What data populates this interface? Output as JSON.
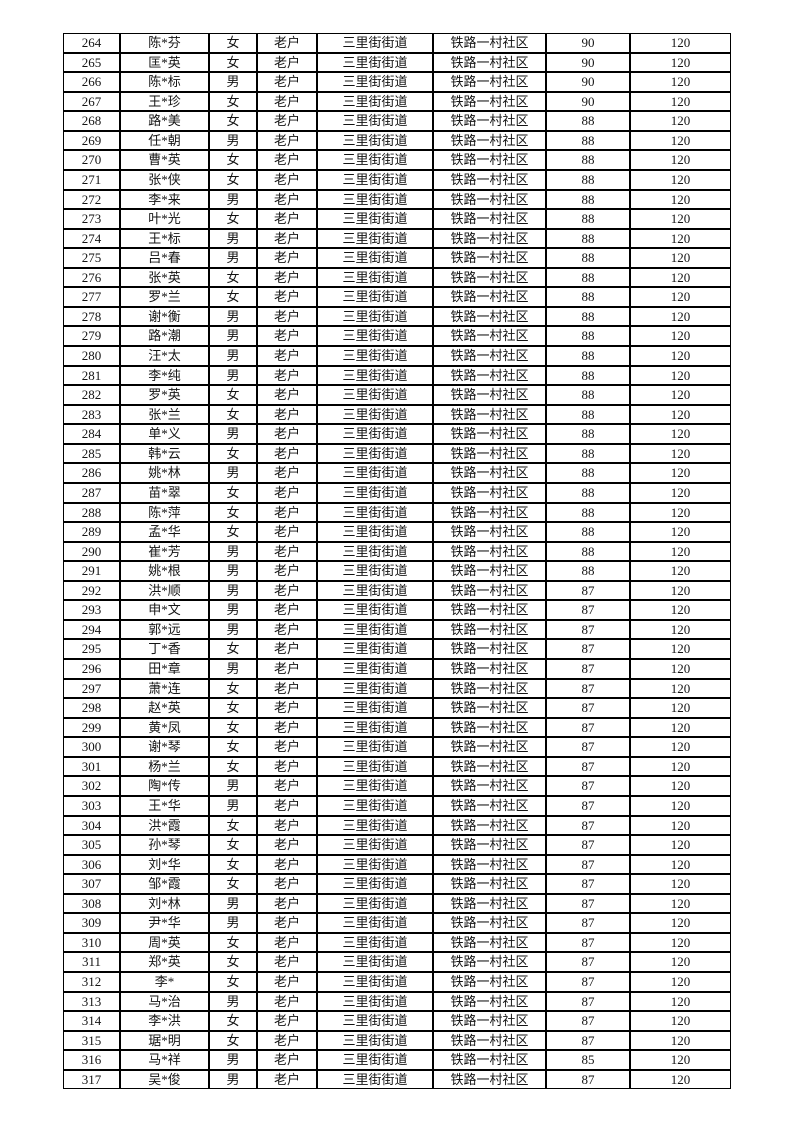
{
  "table": {
    "shared": {
      "household_type": "老户",
      "street": "三里街街道",
      "community": "铁路一村社区",
      "quota": "120"
    },
    "rows": [
      [
        "264",
        "陈*芬",
        "女",
        "老户",
        "三里街街道",
        "铁路一村社区",
        "90",
        "120"
      ],
      [
        "265",
        "匡*英",
        "女",
        "老户",
        "三里街街道",
        "铁路一村社区",
        "90",
        "120"
      ],
      [
        "266",
        "陈*标",
        "男",
        "老户",
        "三里街街道",
        "铁路一村社区",
        "90",
        "120"
      ],
      [
        "267",
        "王*珍",
        "女",
        "老户",
        "三里街街道",
        "铁路一村社区",
        "90",
        "120"
      ],
      [
        "268",
        "路*美",
        "女",
        "老户",
        "三里街街道",
        "铁路一村社区",
        "88",
        "120"
      ],
      [
        "269",
        "任*朝",
        "男",
        "老户",
        "三里街街道",
        "铁路一村社区",
        "88",
        "120"
      ],
      [
        "270",
        "曹*英",
        "女",
        "老户",
        "三里街街道",
        "铁路一村社区",
        "88",
        "120"
      ],
      [
        "271",
        "张*侠",
        "女",
        "老户",
        "三里街街道",
        "铁路一村社区",
        "88",
        "120"
      ],
      [
        "272",
        "李*来",
        "男",
        "老户",
        "三里街街道",
        "铁路一村社区",
        "88",
        "120"
      ],
      [
        "273",
        "叶*光",
        "女",
        "老户",
        "三里街街道",
        "铁路一村社区",
        "88",
        "120"
      ],
      [
        "274",
        "王*标",
        "男",
        "老户",
        "三里街街道",
        "铁路一村社区",
        "88",
        "120"
      ],
      [
        "275",
        "吕*春",
        "男",
        "老户",
        "三里街街道",
        "铁路一村社区",
        "88",
        "120"
      ],
      [
        "276",
        "张*英",
        "女",
        "老户",
        "三里街街道",
        "铁路一村社区",
        "88",
        "120"
      ],
      [
        "277",
        "罗*兰",
        "女",
        "老户",
        "三里街街道",
        "铁路一村社区",
        "88",
        "120"
      ],
      [
        "278",
        "谢*衡",
        "男",
        "老户",
        "三里街街道",
        "铁路一村社区",
        "88",
        "120"
      ],
      [
        "279",
        "路*潮",
        "男",
        "老户",
        "三里街街道",
        "铁路一村社区",
        "88",
        "120"
      ],
      [
        "280",
        "汪*太",
        "男",
        "老户",
        "三里街街道",
        "铁路一村社区",
        "88",
        "120"
      ],
      [
        "281",
        "李*纯",
        "男",
        "老户",
        "三里街街道",
        "铁路一村社区",
        "88",
        "120"
      ],
      [
        "282",
        "罗*英",
        "女",
        "老户",
        "三里街街道",
        "铁路一村社区",
        "88",
        "120"
      ],
      [
        "283",
        "张*兰",
        "女",
        "老户",
        "三里街街道",
        "铁路一村社区",
        "88",
        "120"
      ],
      [
        "284",
        "单*义",
        "男",
        "老户",
        "三里街街道",
        "铁路一村社区",
        "88",
        "120"
      ],
      [
        "285",
        "韩*云",
        "女",
        "老户",
        "三里街街道",
        "铁路一村社区",
        "88",
        "120"
      ],
      [
        "286",
        "姚*林",
        "男",
        "老户",
        "三里街街道",
        "铁路一村社区",
        "88",
        "120"
      ],
      [
        "287",
        "苗*翠",
        "女",
        "老户",
        "三里街街道",
        "铁路一村社区",
        "88",
        "120"
      ],
      [
        "288",
        "陈*萍",
        "女",
        "老户",
        "三里街街道",
        "铁路一村社区",
        "88",
        "120"
      ],
      [
        "289",
        "孟*华",
        "女",
        "老户",
        "三里街街道",
        "铁路一村社区",
        "88",
        "120"
      ],
      [
        "290",
        "崔*芳",
        "男",
        "老户",
        "三里街街道",
        "铁路一村社区",
        "88",
        "120"
      ],
      [
        "291",
        "姚*根",
        "男",
        "老户",
        "三里街街道",
        "铁路一村社区",
        "88",
        "120"
      ],
      [
        "292",
        "洪*顺",
        "男",
        "老户",
        "三里街街道",
        "铁路一村社区",
        "87",
        "120"
      ],
      [
        "293",
        "申*文",
        "男",
        "老户",
        "三里街街道",
        "铁路一村社区",
        "87",
        "120"
      ],
      [
        "294",
        "郭*远",
        "男",
        "老户",
        "三里街街道",
        "铁路一村社区",
        "87",
        "120"
      ],
      [
        "295",
        "丁*香",
        "女",
        "老户",
        "三里街街道",
        "铁路一村社区",
        "87",
        "120"
      ],
      [
        "296",
        "田*章",
        "男",
        "老户",
        "三里街街道",
        "铁路一村社区",
        "87",
        "120"
      ],
      [
        "297",
        "萧*连",
        "女",
        "老户",
        "三里街街道",
        "铁路一村社区",
        "87",
        "120"
      ],
      [
        "298",
        "赵*英",
        "女",
        "老户",
        "三里街街道",
        "铁路一村社区",
        "87",
        "120"
      ],
      [
        "299",
        "黄*凤",
        "女",
        "老户",
        "三里街街道",
        "铁路一村社区",
        "87",
        "120"
      ],
      [
        "300",
        "谢*琴",
        "女",
        "老户",
        "三里街街道",
        "铁路一村社区",
        "87",
        "120"
      ],
      [
        "301",
        "杨*兰",
        "女",
        "老户",
        "三里街街道",
        "铁路一村社区",
        "87",
        "120"
      ],
      [
        "302",
        "陶*传",
        "男",
        "老户",
        "三里街街道",
        "铁路一村社区",
        "87",
        "120"
      ],
      [
        "303",
        "王*华",
        "男",
        "老户",
        "三里街街道",
        "铁路一村社区",
        "87",
        "120"
      ],
      [
        "304",
        "洪*霞",
        "女",
        "老户",
        "三里街街道",
        "铁路一村社区",
        "87",
        "120"
      ],
      [
        "305",
        "孙*琴",
        "女",
        "老户",
        "三里街街道",
        "铁路一村社区",
        "87",
        "120"
      ],
      [
        "306",
        "刘*华",
        "女",
        "老户",
        "三里街街道",
        "铁路一村社区",
        "87",
        "120"
      ],
      [
        "307",
        "邹*霞",
        "女",
        "老户",
        "三里街街道",
        "铁路一村社区",
        "87",
        "120"
      ],
      [
        "308",
        "刘*林",
        "男",
        "老户",
        "三里街街道",
        "铁路一村社区",
        "87",
        "120"
      ],
      [
        "309",
        "尹*华",
        "男",
        "老户",
        "三里街街道",
        "铁路一村社区",
        "87",
        "120"
      ],
      [
        "310",
        "周*英",
        "女",
        "老户",
        "三里街街道",
        "铁路一村社区",
        "87",
        "120"
      ],
      [
        "311",
        "郑*英",
        "女",
        "老户",
        "三里街街道",
        "铁路一村社区",
        "87",
        "120"
      ],
      [
        "312",
        "李*",
        "女",
        "老户",
        "三里街街道",
        "铁路一村社区",
        "87",
        "120"
      ],
      [
        "313",
        "马*治",
        "男",
        "老户",
        "三里街街道",
        "铁路一村社区",
        "87",
        "120"
      ],
      [
        "314",
        "李*洪",
        "女",
        "老户",
        "三里街街道",
        "铁路一村社区",
        "87",
        "120"
      ],
      [
        "315",
        "琚*明",
        "女",
        "老户",
        "三里街街道",
        "铁路一村社区",
        "87",
        "120"
      ],
      [
        "316",
        "马*祥",
        "男",
        "老户",
        "三里街街道",
        "铁路一村社区",
        "85",
        "120"
      ],
      [
        "317",
        "吴*俊",
        "男",
        "老户",
        "三里街街道",
        "铁路一村社区",
        "87",
        "120"
      ]
    ]
  }
}
